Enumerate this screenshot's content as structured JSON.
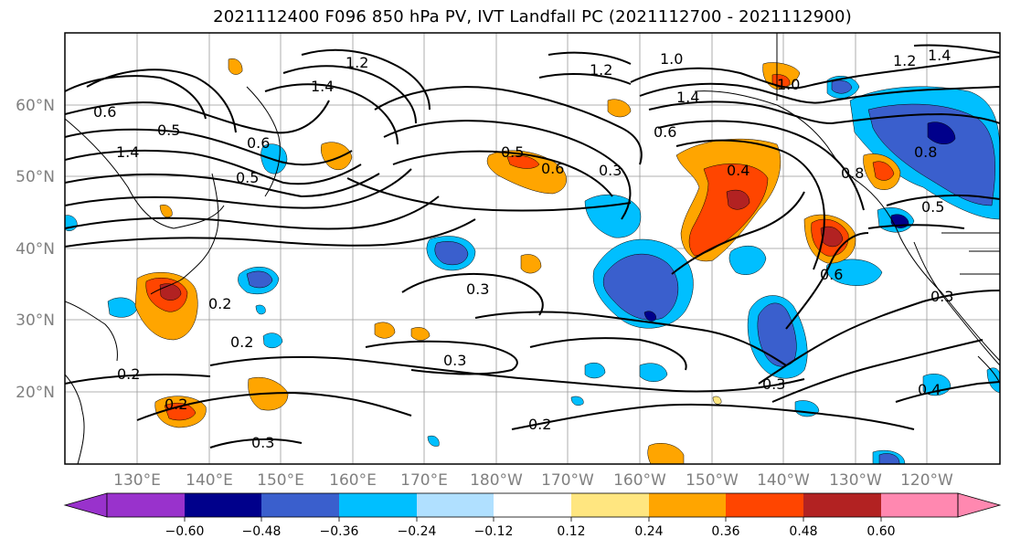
{
  "title": "2021112400 F096 850 hPa PV, IVT Landfall PC (2021112700 - 2021112900)",
  "lat_labels": [
    "60°N",
    "50°N",
    "40°N",
    "30°N",
    "20°N"
  ],
  "lon_labels": [
    "130°E",
    "140°E",
    "150°E",
    "160°E",
    "170°E",
    "180°W",
    "170°W",
    "160°W",
    "150°W",
    "140°W",
    "130°W",
    "120°W"
  ],
  "colorbar": {
    "tick_labels": [
      "−0.60",
      "−0.48",
      "−0.36",
      "−0.24",
      "−0.12",
      "0.12",
      "0.24",
      "0.36",
      "0.48",
      "0.60"
    ],
    "colors": [
      "#9932cc",
      "#00008b",
      "#3a5fcd",
      "#00bfff",
      "#b0e0ff",
      "#ffffff",
      "#ffe680",
      "#ffa500",
      "#ff4500",
      "#b22222",
      "#ff88b0"
    ]
  },
  "contour_labels": [
    "0.6",
    "0.5",
    "1.4",
    "1.2",
    "1.4",
    "0.6",
    "0.5",
    "1.2",
    "1.0",
    "1.4",
    "1.0",
    "1.2",
    "1.4",
    "0.5",
    "0.6",
    "0.3",
    "0.4",
    "0.6",
    "0.8",
    "0.5",
    "0.8",
    "0.6",
    "0.3",
    "0.2",
    "0.2",
    "0.2",
    "0.2",
    "0.3",
    "0.2",
    "0.3",
    "0.3",
    "0.4",
    "0.3"
  ]
}
